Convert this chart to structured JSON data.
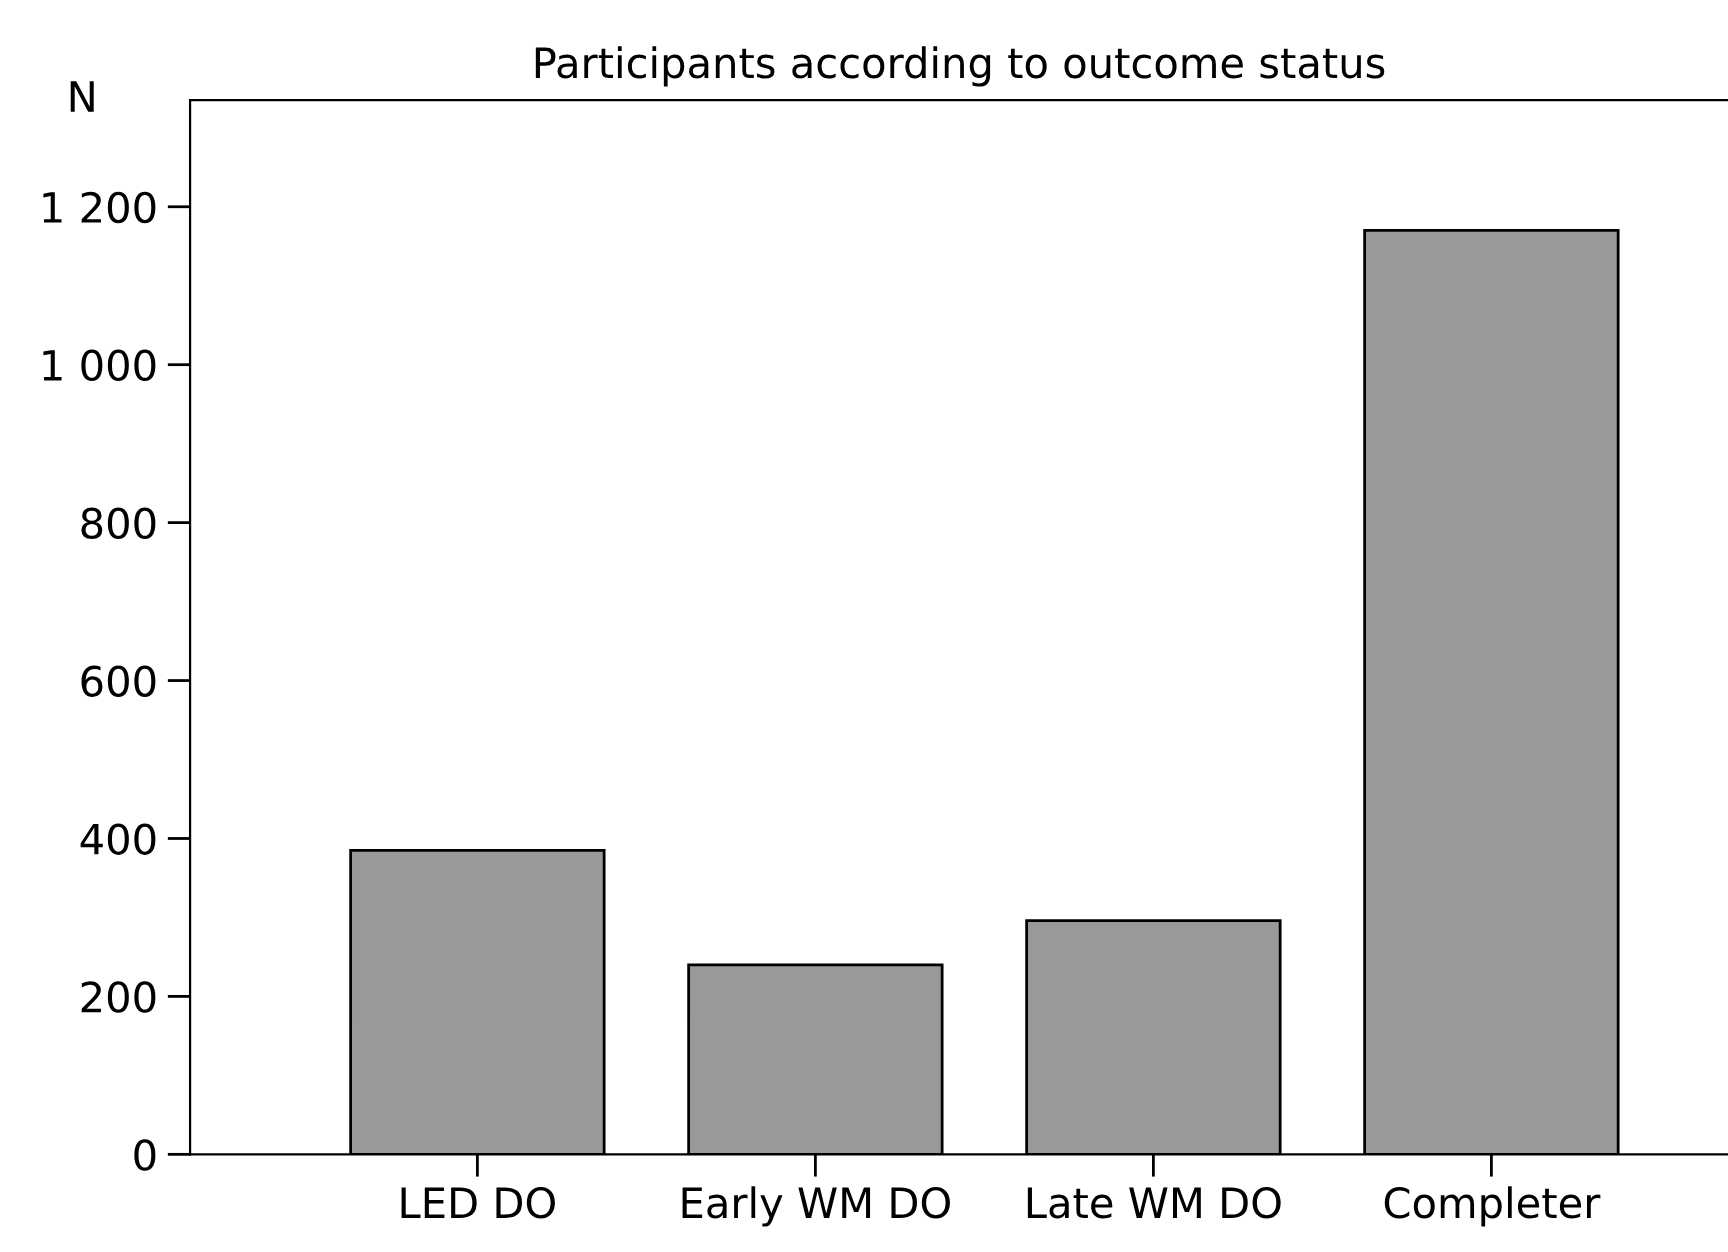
{
  "chart_data": {
    "type": "bar",
    "title": "Participants according to outcome status",
    "ylabel": "N",
    "categories": [
      "LED DO",
      "Early WM DO",
      "Late WM DO",
      "Completer"
    ],
    "values": [
      385,
      240,
      296,
      1170
    ],
    "color": "#999999",
    "ylim": [
      0,
      1335
    ],
    "yticks": [
      0,
      200,
      400,
      600,
      800,
      {
        "value": 1000,
        "label": "1 000"
      },
      {
        "value": 1200,
        "label": "1 200"
      }
    ],
    "grid": false,
    "legend": false
  }
}
